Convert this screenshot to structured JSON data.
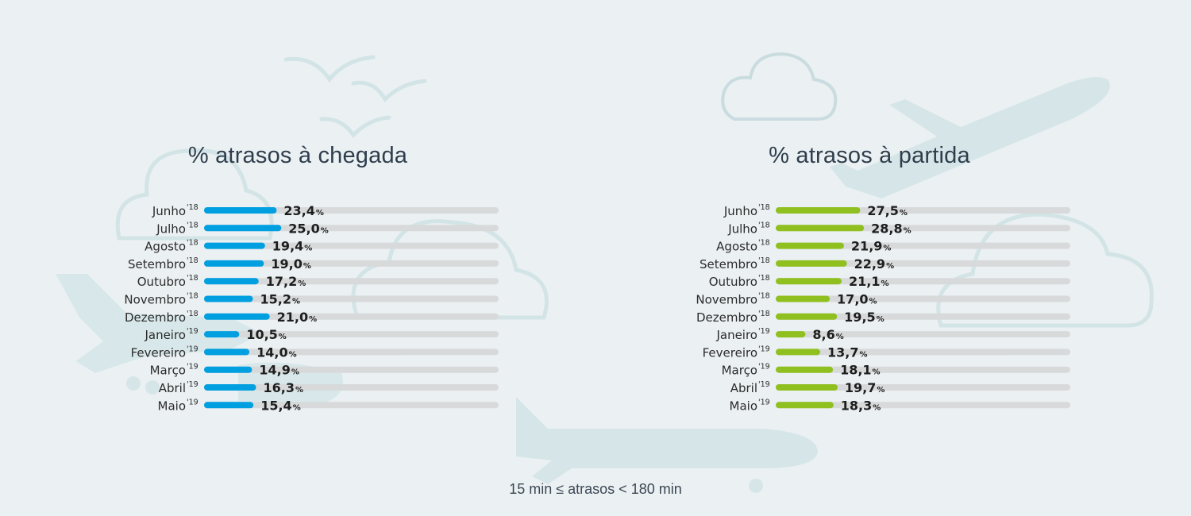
{
  "chart_data": [
    {
      "type": "bar",
      "orientation": "horizontal",
      "title": "% atrasos à chegada",
      "categories": [
        "Junho",
        "Julho",
        "Agosto",
        "Setembro",
        "Outubro",
        "Novembro",
        "Dezembro",
        "Janeiro",
        "Fevereiro",
        "Março",
        "Abril",
        "Maio"
      ],
      "category_years": [
        "'18",
        "'18",
        "'18",
        "'18",
        "'18",
        "'18",
        "'18",
        "'19",
        "'19",
        "'19",
        "'19",
        "'19"
      ],
      "values": [
        23.4,
        25.0,
        19.4,
        19.0,
        17.2,
        15.2,
        21.0,
        10.5,
        14.0,
        14.9,
        16.3,
        15.4
      ],
      "value_labels": [
        "23,4",
        "25,0",
        "19,4",
        "19,0",
        "17,2",
        "15,2",
        "21,0",
        "10,5",
        "14,0",
        "14,9",
        "16,3",
        "15,4"
      ],
      "unit": "%",
      "xlim": [
        0,
        100
      ],
      "color": "#009fe0",
      "track_color": "#d8d9da",
      "grid": false
    },
    {
      "type": "bar",
      "orientation": "horizontal",
      "title": "% atrasos à partida",
      "categories": [
        "Junho",
        "Julho",
        "Agosto",
        "Setembro",
        "Outubro",
        "Novembro",
        "Dezembro",
        "Janeiro",
        "Fevereiro",
        "Março",
        "Abril",
        "Maio"
      ],
      "category_years": [
        "'18",
        "'18",
        "'18",
        "'18",
        "'18",
        "'18",
        "'18",
        "'19",
        "'19",
        "'19",
        "'19",
        "'19"
      ],
      "values": [
        27.5,
        28.8,
        21.9,
        22.9,
        21.1,
        17.0,
        19.5,
        8.6,
        13.7,
        18.1,
        19.7,
        18.3
      ],
      "value_labels": [
        "27,5",
        "28,8",
        "21,9",
        "22,9",
        "21,1",
        "17,0",
        "19,5",
        "8,6",
        "13,7",
        "18,1",
        "19,7",
        "18,3"
      ],
      "unit": "%",
      "xlim": [
        0,
        100
      ],
      "color": "#8fc01f",
      "track_color": "#d8d9da",
      "grid": false
    }
  ],
  "footnote": "15 min ≤ atrasos < 180 min",
  "background": {
    "color": "#ebf0f3",
    "decorations": [
      "cloud-icon",
      "plane-icon",
      "bird-icon"
    ]
  }
}
